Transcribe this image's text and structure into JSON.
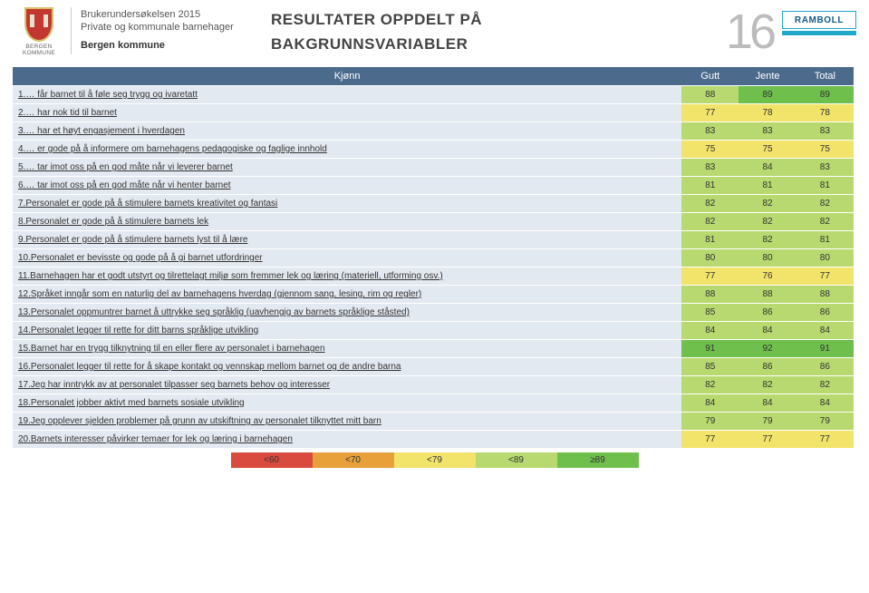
{
  "header": {
    "org_logo_text": "BERGEN KOMMUNE",
    "survey_line1": "Brukerundersøkelsen 2015",
    "survey_line2": "Private og kommunale barnehager",
    "survey_line3": "Bergen kommune",
    "title_line1": "RESULTATER OPPDELT PÅ",
    "title_line2": "BAKGRUNNSVARIABLER",
    "page_number": "16",
    "brand": "RAMBOLL"
  },
  "colors": {
    "header_bg": "#4b6a8c",
    "row_label_bg": "#e3e9f0",
    "brand_blue": "#1fa9c9",
    "crest_red": "#c2372f",
    "legend_red": "#d94b3f",
    "legend_orange": "#e8a03a",
    "legend_yellow": "#f2e36b",
    "legend_ltgreen": "#b7d96f",
    "legend_green": "#6fbf4d"
  },
  "table": {
    "group_header": "Kjønn",
    "columns": [
      "Gutt",
      "Jente",
      "Total"
    ],
    "questions": [
      "1.… får barnet til å føle seg trygg og ivaretatt",
      "2.… har nok tid til barnet",
      "3.… har et høyt engasjement i hverdagen",
      "4.… er gode på å informere om barnehagens pedagogiske og faglige innhold",
      "5.… tar imot oss på en god måte når vi leverer barnet",
      "6.… tar imot oss på en god måte når vi henter barnet",
      "7.Personalet er gode på å stimulere barnets kreativitet og fantasi",
      "8.Personalet er gode på å stimulere barnets lek",
      "9.Personalet er gode på å stimulere barnets lyst til å lære",
      "10.Personalet er bevisste og gode på å gi barnet utfordringer",
      "11.Barnehagen har et godt utstyrt og tilrettelagt miljø som fremmer lek og læring (materiell, utforming osv.)",
      "12.Språket inngår som en naturlig del av barnehagens hverdag (gjennom sang, lesing, rim og regler)",
      "13.Personalet oppmuntrer barnet å uttrykke seg språklig (uavhengig av barnets språklige ståsted)",
      "14.Personalet legger til rette for ditt barns språklige utvikling",
      "15.Barnet har en trygg tilknytning til en eller flere av personalet i barnehagen",
      "16.Personalet legger til rette for å skape kontakt og vennskap mellom barnet og de andre barna",
      "17.Jeg har inntrykk av at personalet tilpasser seg barnets behov og interesser",
      "18.Personalet jobber aktivt med barnets sosiale utvikling",
      "19.Jeg opplever sjelden problemer på grunn av utskiftning av personalet tilknyttet mitt barn",
      "20.Barnets interesser påvirker temaer for lek og læring i barnehagen"
    ],
    "values": [
      [
        88,
        89,
        89
      ],
      [
        77,
        78,
        78
      ],
      [
        83,
        83,
        83
      ],
      [
        75,
        75,
        75
      ],
      [
        83,
        84,
        83
      ],
      [
        81,
        81,
        81
      ],
      [
        82,
        82,
        82
      ],
      [
        82,
        82,
        82
      ],
      [
        81,
        82,
        81
      ],
      [
        80,
        80,
        80
      ],
      [
        77,
        76,
        77
      ],
      [
        88,
        88,
        88
      ],
      [
        85,
        86,
        86
      ],
      [
        84,
        84,
        84
      ],
      [
        91,
        92,
        91
      ],
      [
        85,
        86,
        86
      ],
      [
        82,
        82,
        82
      ],
      [
        84,
        84,
        84
      ],
      [
        79,
        79,
        79
      ],
      [
        77,
        77,
        77
      ]
    ]
  },
  "legend": {
    "labels": [
      "<60",
      "<70",
      "<79",
      "<89",
      "≥89"
    ],
    "thresholds": [
      60,
      70,
      79,
      89
    ]
  }
}
